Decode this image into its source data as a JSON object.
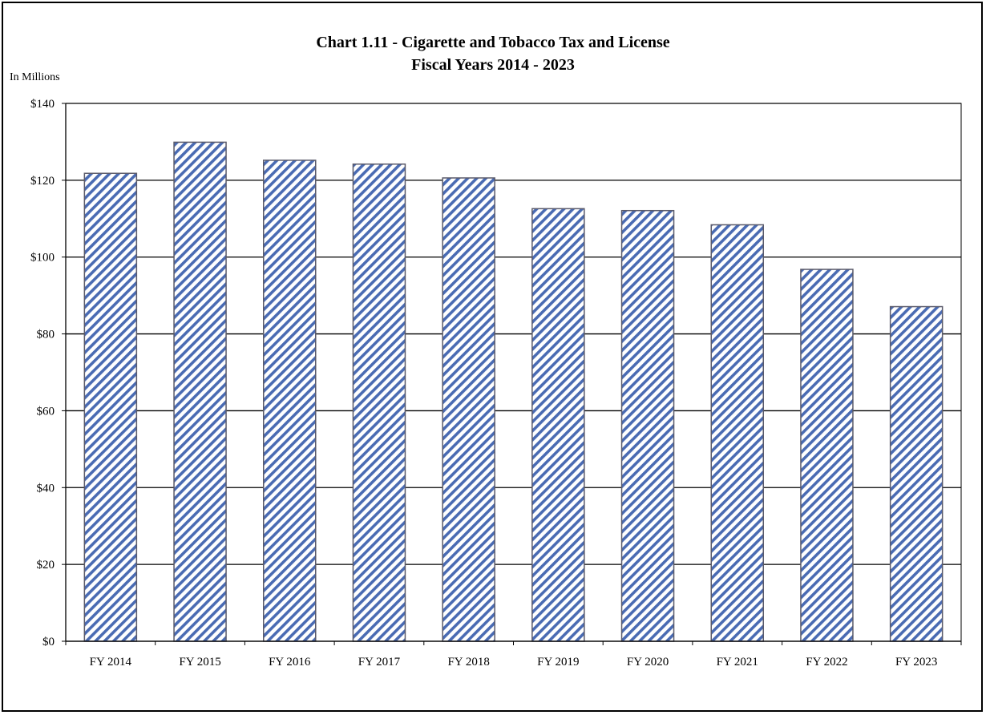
{
  "chart_data": {
    "type": "bar",
    "title": "Chart 1.11 - Cigarette and Tobacco Tax and License",
    "subtitle": "Fiscal Years 2014 - 2023",
    "ylabel": "In Millions",
    "xlabel": "",
    "categories": [
      "FY 2014",
      "FY 2015",
      "FY 2016",
      "FY 2017",
      "FY 2018",
      "FY 2019",
      "FY 2020",
      "FY 2021",
      "FY 2022",
      "FY 2023"
    ],
    "values": [
      121.8,
      129.9,
      125.2,
      124.2,
      120.6,
      112.6,
      112.1,
      108.4,
      96.8,
      87.1
    ],
    "ylim": [
      0,
      140
    ],
    "yticks": [
      0,
      20,
      40,
      60,
      80,
      100,
      120,
      140
    ],
    "ytick_labels": [
      "$0",
      "$20",
      "$40",
      "$60",
      "$80",
      "$100",
      "$120",
      "$140"
    ],
    "grid": true,
    "legend": "none",
    "bar_fill_pattern": "diagonal-hatch",
    "colors": {
      "bar_hatch": "#4a6bb3",
      "bar_outline": "#5a5a6a",
      "grid": "#000000"
    }
  }
}
